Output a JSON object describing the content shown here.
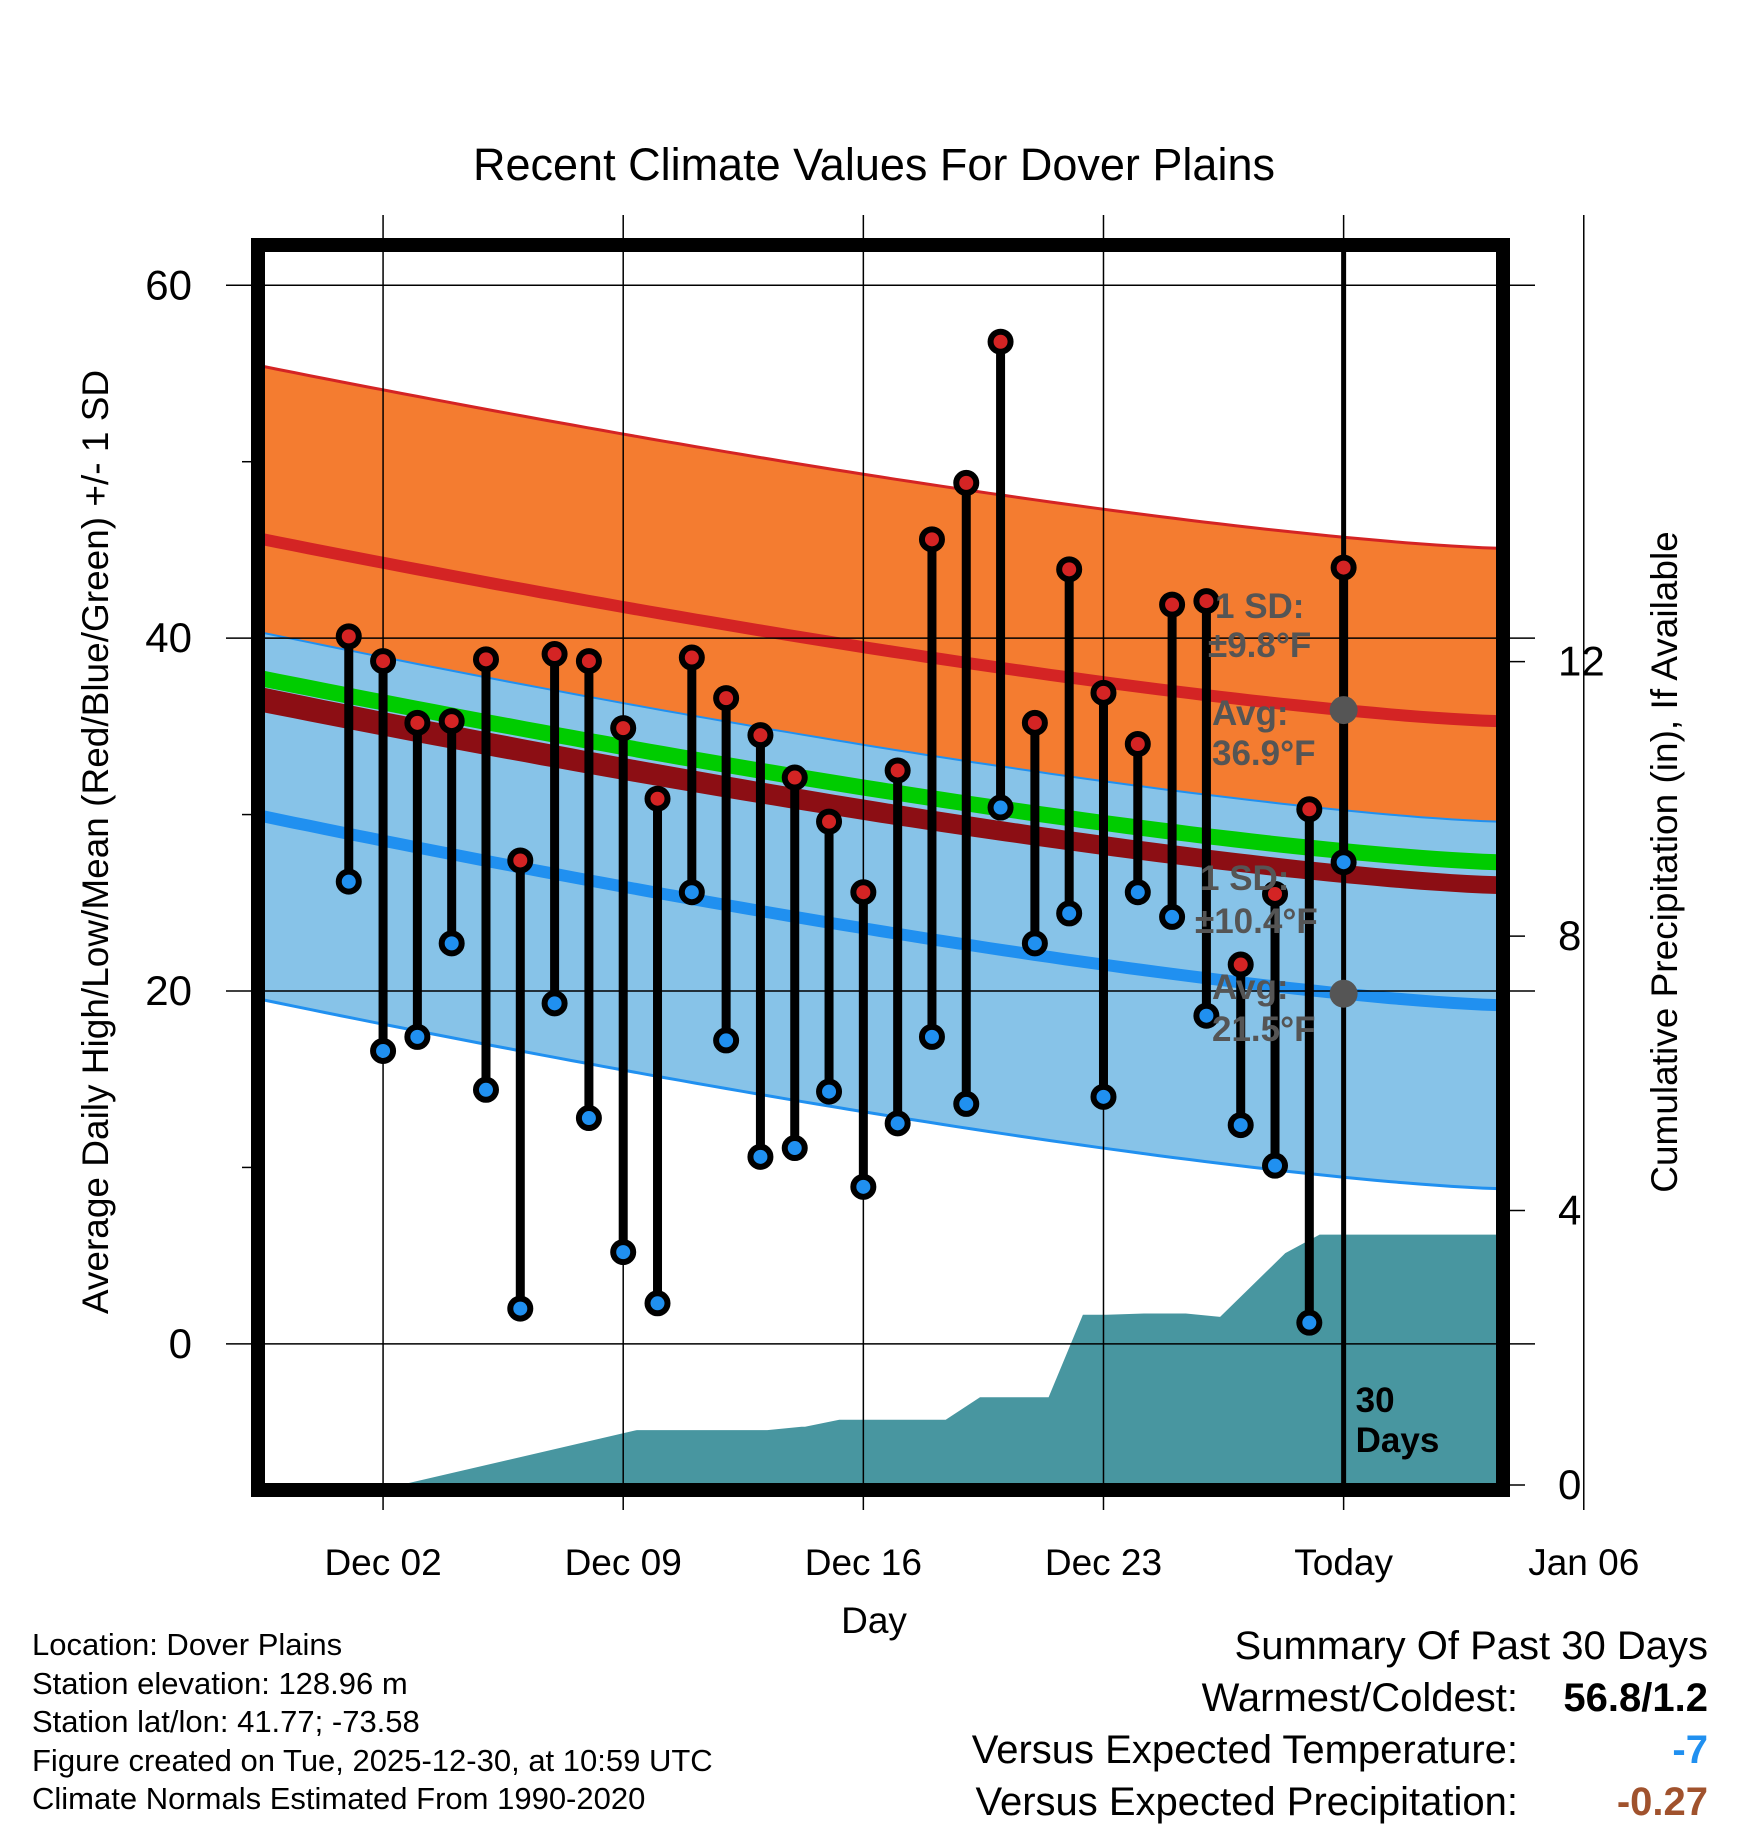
{
  "chart_data": {
    "type": "line",
    "title": "Recent Climate Values For Dover Plains",
    "xlabel": "Day",
    "ylabel": "Average Daily High/Low/Mean (Red/Blue/Green) +/- 1 SD",
    "y2label": "Cumulative Precipitation (in), If Available",
    "ylim": [
      -8,
      62
    ],
    "y2lim": [
      0,
      18
    ],
    "xlim": [
      -1.5,
      34.5
    ],
    "x_tick_labels": [
      {
        "day": 2,
        "label": "Dec 02"
      },
      {
        "day": 9,
        "label": "Dec 09"
      },
      {
        "day": 16,
        "label": "Dec 16"
      },
      {
        "day": 23,
        "label": "Dec 23"
      },
      {
        "day": 30,
        "label": "Today"
      },
      {
        "day": 37,
        "label": "Jan 06"
      }
    ],
    "y_ticks_labeled": [
      0,
      20,
      40,
      60
    ],
    "y_ticks_minor": [
      10,
      30,
      50
    ],
    "y2_ticks": [
      0,
      4,
      8,
      12
    ],
    "today_day": 30,
    "today_label": "30 Days",
    "days": [
      1,
      2,
      3,
      4,
      5,
      6,
      7,
      8,
      9,
      10,
      11,
      12,
      13,
      14,
      15,
      16,
      17,
      18,
      19,
      20,
      21,
      22,
      23,
      24,
      25,
      26,
      27,
      28,
      29,
      30
    ],
    "daily_high": [
      40.1,
      38.7,
      35.2,
      35.3,
      38.8,
      27.4,
      39.1,
      38.7,
      34.9,
      30.9,
      38.9,
      36.6,
      34.5,
      32.1,
      29.6,
      25.6,
      32.5,
      45.6,
      48.8,
      56.8,
      35.2,
      43.9,
      36.9,
      34.0,
      41.9,
      42.1,
      21.5,
      25.5,
      30.3,
      44.0
    ],
    "daily_low": [
      26.2,
      16.6,
      17.4,
      22.7,
      14.4,
      2.0,
      19.3,
      12.8,
      5.2,
      2.3,
      25.6,
      17.2,
      10.6,
      11.1,
      14.3,
      8.9,
      12.5,
      17.4,
      13.6,
      30.4,
      22.7,
      24.4,
      14.0,
      25.6,
      24.2,
      18.6,
      12.4,
      10.1,
      1.2,
      27.3
    ],
    "normal_high_mean": [
      45.6,
      35.3
    ],
    "normal_high_sd": 9.8,
    "normal_low_mean": [
      29.9,
      19.2
    ],
    "normal_low_sd": 10.4,
    "normal_mean": [
      37.7,
      27.3
    ],
    "precip_days": [
      1.5,
      2.5,
      9.4,
      10.4,
      13.2,
      14.2,
      14.3,
      15.3,
      18.4,
      19.4,
      21.4,
      22.4,
      23.1,
      24.2,
      25.4,
      26.4,
      28.3,
      29.3,
      34.5
    ],
    "precip_cumulative": [
      0.0,
      0.0,
      0.8,
      0.8,
      0.8,
      0.85,
      0.85,
      0.95,
      0.95,
      1.28,
      1.28,
      2.48,
      2.48,
      2.5,
      2.5,
      2.45,
      3.38,
      3.65,
      3.65
    ],
    "annotations": {
      "high_sd_label": "1 SD:",
      "high_sd_value": "±9.8°F",
      "high_avg_label": "Avg:",
      "high_avg_value": "36.9°F",
      "low_sd_label": "1 SD:",
      "low_sd_value": "±10.4°F",
      "low_avg_label": "Avg:",
      "low_avg_value": "21.5°F"
    },
    "colors": {
      "high_band": "#f47c30",
      "high_line": "#d42424",
      "mean_band": "#8c0e14",
      "mean_line": "#00cc00",
      "low_band": "#87c3e8",
      "low_line": "#2090f0",
      "precip": "#4896a0",
      "high_dot": "#d42424",
      "low_dot": "#2090f0",
      "marker": "#555555"
    }
  },
  "info": {
    "location": "Location: Dover Plains",
    "elevation": "Station elevation: 128.96 m",
    "latlon": "Station lat/lon: 41.77; -73.58",
    "created": "Figure created on Tue, 2025-12-30, at 10:59 UTC",
    "normals": "Climate Normals Estimated From 1990-2020"
  },
  "summary": {
    "title": "Summary Of Past 30 Days",
    "warmest_label": "Warmest/Coldest:",
    "warmest_value": "56.8/1.2",
    "temp_label": "Versus Expected Temperature:",
    "temp_value": "-7",
    "temp_color": "#2090f0",
    "precip_label": "Versus Expected Precipitation:",
    "precip_value": "-0.27",
    "precip_color": "#a0522d"
  }
}
